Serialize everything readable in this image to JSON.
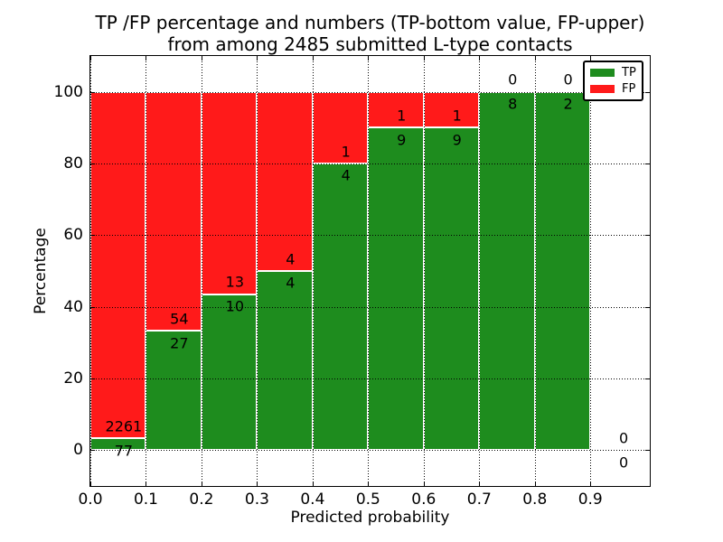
{
  "figure": {
    "title_line1": "TP /FP percentage and numbers (TP-bottom value, FP-upper)",
    "title_line2": "from among 2485 submitted L-type contacts"
  },
  "chart_data": {
    "type": "bar",
    "stacked": true,
    "title": "TP /FP percentage and numbers (TP-bottom value, FP-upper)\nfrom among 2485 submitted L-type contacts",
    "total_submitted_contacts": 2485,
    "xlabel": "Predicted probability",
    "ylabel": "Percentage",
    "xlim": [
      0,
      1.007
    ],
    "ylim": [
      -10,
      110
    ],
    "x_tick_labels": [
      "0.0",
      "0.1",
      "0.2",
      "0.3",
      "0.4",
      "0.5",
      "0.6",
      "0.7",
      "0.8",
      "0.9"
    ],
    "x_tick_values": [
      0.0,
      0.1,
      0.2,
      0.3,
      0.4,
      0.5,
      0.6,
      0.7,
      0.8,
      0.9
    ],
    "y_tick_values": [
      0,
      20,
      40,
      60,
      80,
      100
    ],
    "grid": "dotted",
    "legend": {
      "position": "upper right",
      "entries": [
        {
          "label": "TP",
          "color": "#1e8c1e"
        },
        {
          "label": "FP",
          "color": "#ff1a1a"
        }
      ]
    },
    "colors": {
      "tp": "#1e8c1e",
      "fp": "#ff1a1a",
      "bar_edge": "#ffffff",
      "grid": "#000000",
      "background": "#ffffff",
      "text": "#000000"
    },
    "bins": [
      {
        "x_start": 0.0,
        "x_end": 0.1,
        "tp": 77,
        "fp": 2261,
        "tp_pct": 3.29,
        "fp_pct": 96.71
      },
      {
        "x_start": 0.1,
        "x_end": 0.2,
        "tp": 27,
        "fp": 54,
        "tp_pct": 33.33,
        "fp_pct": 66.67
      },
      {
        "x_start": 0.2,
        "x_end": 0.3,
        "tp": 10,
        "fp": 13,
        "tp_pct": 43.48,
        "fp_pct": 56.52
      },
      {
        "x_start": 0.3,
        "x_end": 0.4,
        "tp": 4,
        "fp": 4,
        "tp_pct": 50.0,
        "fp_pct": 50.0
      },
      {
        "x_start": 0.4,
        "x_end": 0.5,
        "tp": 4,
        "fp": 1,
        "tp_pct": 80.0,
        "fp_pct": 20.0
      },
      {
        "x_start": 0.5,
        "x_end": 0.6,
        "tp": 9,
        "fp": 1,
        "tp_pct": 90.0,
        "fp_pct": 10.0
      },
      {
        "x_start": 0.6,
        "x_end": 0.7,
        "tp": 9,
        "fp": 1,
        "tp_pct": 90.0,
        "fp_pct": 10.0
      },
      {
        "x_start": 0.7,
        "x_end": 0.8,
        "tp": 8,
        "fp": 0,
        "tp_pct": 100.0,
        "fp_pct": 0.0
      },
      {
        "x_start": 0.8,
        "x_end": 0.9,
        "tp": 2,
        "fp": 0,
        "tp_pct": 100.0,
        "fp_pct": 0.0
      },
      {
        "x_start": 0.9,
        "x_end": 1.0,
        "tp": 0,
        "fp": 0,
        "tp_pct": 0.0,
        "fp_pct": 0.0
      }
    ]
  }
}
